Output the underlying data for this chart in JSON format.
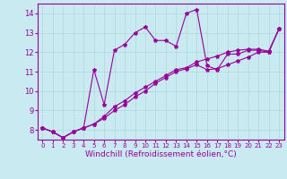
{
  "background_color": "#c8eaf0",
  "grid_color": "#b0d8e0",
  "line_color": "#990099",
  "marker": "*",
  "marker_size": 3,
  "xlabel": "Windchill (Refroidissement éolien,°C)",
  "xlabel_fontsize": 6.5,
  "xtick_fontsize": 5,
  "ytick_fontsize": 6,
  "ylim": [
    7.5,
    14.5
  ],
  "xlim": [
    -0.5,
    23.5
  ],
  "yticks": [
    8,
    9,
    10,
    11,
    12,
    13,
    14
  ],
  "xticks": [
    0,
    1,
    2,
    3,
    4,
    5,
    6,
    7,
    8,
    9,
    10,
    11,
    12,
    13,
    14,
    15,
    16,
    17,
    18,
    19,
    20,
    21,
    22,
    23
  ],
  "series": [
    [
      8.1,
      7.9,
      7.6,
      7.9,
      8.1,
      11.1,
      9.3,
      12.1,
      12.4,
      13.0,
      13.3,
      12.6,
      12.6,
      12.3,
      14.0,
      14.2,
      11.3,
      11.1,
      11.9,
      11.9,
      12.1,
      12.1,
      12.0,
      13.2
    ],
    [
      8.1,
      7.9,
      7.6,
      7.9,
      8.1,
      8.3,
      8.6,
      9.0,
      9.3,
      9.7,
      10.0,
      10.4,
      10.7,
      11.0,
      11.15,
      11.35,
      11.1,
      11.15,
      11.35,
      11.55,
      11.75,
      12.0,
      12.0,
      13.2
    ],
    [
      8.1,
      7.9,
      7.6,
      7.9,
      8.1,
      8.3,
      8.7,
      9.2,
      9.5,
      9.9,
      10.2,
      10.5,
      10.8,
      11.1,
      11.2,
      11.5,
      11.65,
      11.8,
      12.0,
      12.1,
      12.15,
      12.15,
      12.05,
      13.2
    ]
  ],
  "linewidth": 0.8
}
